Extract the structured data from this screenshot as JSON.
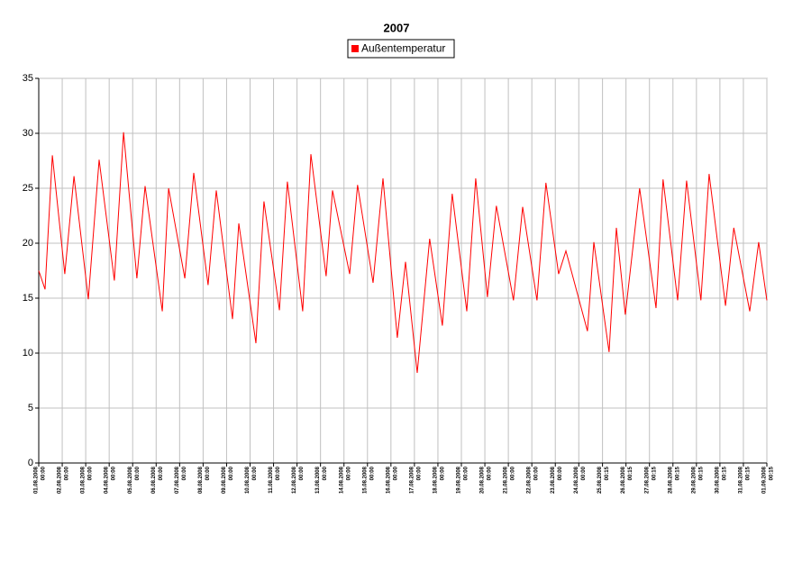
{
  "chart_data": {
    "type": "line",
    "title": "2007",
    "series": [
      {
        "name": "Außentemperatur",
        "color": "#ff0000",
        "x": [
          0,
          0.27,
          0.58,
          1.11,
          1.5,
          2.11,
          2.57,
          3.22,
          3.61,
          4.18,
          4.53,
          5.26,
          5.53,
          6.22,
          6.6,
          7.21,
          7.56,
          8.25,
          8.52,
          9.25,
          9.59,
          10.25,
          10.59,
          11.24,
          11.59,
          12.24,
          12.51,
          13.24,
          13.58,
          14.24,
          14.66,
          15.27,
          15.62,
          16.12,
          16.65,
          17.19,
          17.61,
          18.23,
          18.61,
          19.11,
          19.49,
          20.22,
          20.61,
          21.22,
          21.6,
          22.14,
          22.45,
          23.37,
          23.64,
          24.29,
          24.6,
          24.98,
          25.59,
          26.29,
          26.59,
          27.21,
          27.59,
          28.2,
          28.55,
          29.25,
          29.6,
          30.28,
          30.66,
          31.0104
        ],
        "values": [
          17.5,
          15.8,
          28,
          17.2,
          26.1,
          14.9,
          27.6,
          16.6,
          30.1,
          16.8,
          25.2,
          13.8,
          25,
          16.8,
          26.4,
          16.2,
          24.8,
          13.1,
          21.8,
          10.9,
          23.8,
          13.9,
          25.6,
          13.8,
          28.1,
          17,
          24.8,
          17.2,
          25.3,
          16.4,
          25.9,
          11.4,
          18.3,
          8.2,
          20.4,
          12.5,
          24.5,
          13.8,
          25.9,
          15.1,
          23.4,
          14.8,
          23.3,
          14.8,
          25.5,
          17.2,
          19.3,
          12,
          20.1,
          10.1,
          21.4,
          13.5,
          25,
          14.1,
          25.8,
          14.8,
          25.7,
          14.8,
          26.3,
          14.3,
          21.4,
          13.8,
          20.1,
          14.8
        ]
      }
    ],
    "xlim": [
      0,
      31.0104
    ],
    "xticks": [
      {
        "value": 0,
        "label": "01.08.2008",
        "time": "00:00"
      },
      {
        "value": 1,
        "label": "02.08.2008",
        "time": "00:00"
      },
      {
        "value": 2,
        "label": "03.08.2008",
        "time": "00:00"
      },
      {
        "value": 3,
        "label": "04.08.2008",
        "time": "00:00"
      },
      {
        "value": 4,
        "label": "05.08.2008",
        "time": "00:00"
      },
      {
        "value": 5,
        "label": "06.08.2008",
        "time": "00:00"
      },
      {
        "value": 6,
        "label": "07.08.2008",
        "time": "00:00"
      },
      {
        "value": 7,
        "label": "08.08.2008",
        "time": "00:00"
      },
      {
        "value": 8,
        "label": "09.08.2008",
        "time": "00:00"
      },
      {
        "value": 9,
        "label": "10.08.2008",
        "time": "00:00"
      },
      {
        "value": 10,
        "label": "11.08.2008",
        "time": "00:00"
      },
      {
        "value": 11,
        "label": "12.08.2008",
        "time": "00:00"
      },
      {
        "value": 12,
        "label": "13.08.2008",
        "time": "00:00"
      },
      {
        "value": 13,
        "label": "14.08.2008",
        "time": "00:00"
      },
      {
        "value": 14,
        "label": "15.08.2008",
        "time": "00:00"
      },
      {
        "value": 15,
        "label": "16.08.2008",
        "time": "00:00"
      },
      {
        "value": 16,
        "label": "17.08.2008",
        "time": "00:00"
      },
      {
        "value": 17,
        "label": "18.08.2008",
        "time": "00:00"
      },
      {
        "value": 18,
        "label": "19.08.2008",
        "time": "00:00"
      },
      {
        "value": 19,
        "label": "20.08.2008",
        "time": "00:00"
      },
      {
        "value": 20,
        "label": "21.08.2008",
        "time": "00:00"
      },
      {
        "value": 21,
        "label": "22.08.2008",
        "time": "00:00"
      },
      {
        "value": 22,
        "label": "23.08.2008",
        "time": "00:00"
      },
      {
        "value": 23,
        "label": "24.08.2008",
        "time": "00:00"
      },
      {
        "value": 24.0104,
        "label": "25.08.2008",
        "time": "00:15"
      },
      {
        "value": 25.0104,
        "label": "26.08.2008",
        "time": "00:15"
      },
      {
        "value": 26.0104,
        "label": "27.08.2008",
        "time": "00:15"
      },
      {
        "value": 27.0104,
        "label": "28.08.2008",
        "time": "00:15"
      },
      {
        "value": 28.0104,
        "label": "29.08.2008",
        "time": "00:15"
      },
      {
        "value": 29.0104,
        "label": "30.08.2008",
        "time": "00:15"
      },
      {
        "value": 30.0104,
        "label": "31.08.2008",
        "time": "00:15"
      },
      {
        "value": 31.0104,
        "label": "01.09.2008",
        "time": "00:15"
      }
    ],
    "ylim": [
      0,
      35
    ],
    "yticks": [
      0,
      5,
      10,
      15,
      20,
      25,
      30,
      35
    ],
    "grid": true,
    "legend": "top"
  }
}
